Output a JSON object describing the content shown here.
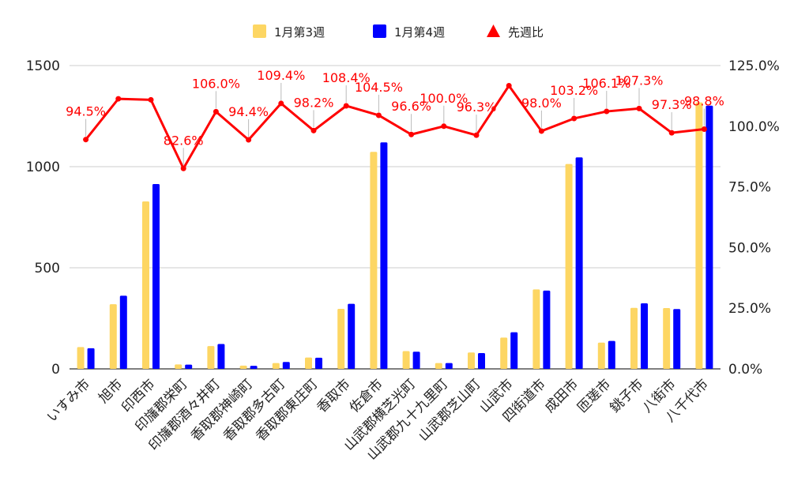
{
  "chart_data": {
    "type": "bar",
    "title": "",
    "xlabel": "",
    "ylabel": "",
    "categories": [
      "いすみ市",
      "旭市",
      "印西市",
      "印旛郡栄町",
      "印旛郡酒々井町",
      "香取郡神崎町",
      "香取郡多古町",
      "香取郡東庄町",
      "香取市",
      "佐倉市",
      "山武郡横芝光町",
      "山武郡九十九里町",
      "山武郡芝山町",
      "山武市",
      "四街道市",
      "成田市",
      "匝瑳市",
      "銚子市",
      "八街市",
      "八千代市"
    ],
    "series": [
      {
        "name": "1月第3週",
        "type": "bar",
        "axis": "left",
        "color": "#FDD663",
        "values": [
          108,
          320,
          828,
          22,
          113,
          16,
          29,
          56,
          297,
          1073,
          88,
          29,
          81,
          155,
          393,
          1013,
          130,
          302,
          301,
          1318
        ]
      },
      {
        "name": "1月第4週",
        "type": "bar",
        "axis": "left",
        "color": "#0000FF",
        "values": [
          102,
          362,
          914,
          21,
          123,
          15,
          34,
          55,
          322,
          1120,
          85,
          29,
          78,
          181,
          387,
          1046,
          138,
          324,
          296,
          1302
        ]
      },
      {
        "name": "先週比",
        "type": "line",
        "axis": "right",
        "color": "#FF0000",
        "values": [
          94.5,
          111.3,
          110.9,
          82.6,
          106.0,
          94.4,
          109.4,
          98.2,
          108.4,
          104.5,
          96.6,
          100.0,
          96.3,
          116.7,
          98.0,
          103.2,
          106.1,
          107.3,
          97.3,
          98.8
        ],
        "labels": [
          "94.5%",
          "",
          "",
          "82.6%",
          "106.0%",
          "94.4%",
          "109.4%",
          "98.2%",
          "108.4%",
          "104.5%",
          "96.6%",
          "100.0%",
          "96.3%",
          "",
          "98.0%",
          "103.2%",
          "106.1%",
          "107.3%",
          "97.3%",
          "98.8%"
        ]
      }
    ],
    "y_left": {
      "range": [
        0,
        1500
      ],
      "ticks": [
        0,
        500,
        1000,
        1500
      ],
      "tick_labels": [
        "0",
        "500",
        "1000",
        "1500"
      ]
    },
    "y_right": {
      "range": [
        0,
        125
      ],
      "ticks": [
        0,
        25,
        50,
        75,
        100,
        125
      ],
      "tick_labels": [
        "0.0%",
        "25.0%",
        "50.0%",
        "75.0%",
        "100.0%",
        "125.0%"
      ]
    },
    "grid": true,
    "legend": {
      "position": "top",
      "entries": [
        "1月第3週",
        "1月第4週",
        "先週比"
      ]
    }
  }
}
